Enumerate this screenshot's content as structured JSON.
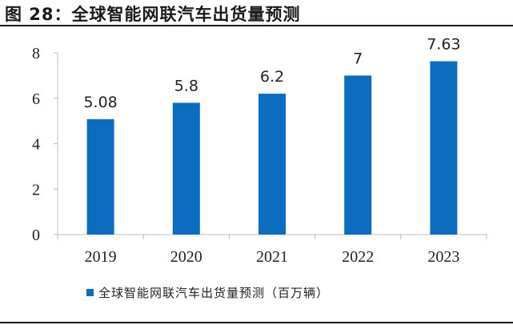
{
  "figure": {
    "title": "图 28：全球智能网联汽车出货量预测"
  },
  "colors": {
    "bar": "#0b6cc0",
    "axis": "#bdbdbd",
    "text": "#222222"
  },
  "chart_data": {
    "type": "bar",
    "categories": [
      "2019",
      "2020",
      "2021",
      "2022",
      "2023"
    ],
    "series": [
      {
        "name": "全球智能网联汽车出货量预测（百万辆）",
        "values": [
          5.08,
          5.8,
          6.2,
          7,
          7.63
        ]
      }
    ],
    "data_labels": [
      "5.08",
      "5.8",
      "6.2",
      "7",
      "7.63"
    ],
    "yticks": [
      0,
      2,
      4,
      6,
      8
    ],
    "ylim": [
      0,
      8
    ],
    "grid": false,
    "legend": "bottom"
  }
}
